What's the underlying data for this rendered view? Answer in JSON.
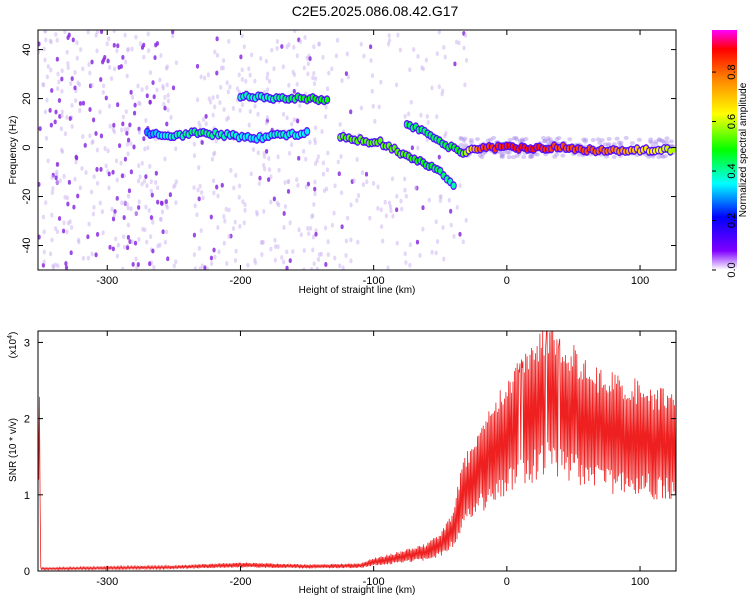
{
  "title": "C2E5.2025.086.08.42.G17",
  "chart_data": [
    {
      "type": "heatmap",
      "xlabel": "Height of straight line (km)",
      "ylabel": "Frequency (Hz)",
      "xlim": [
        -352,
        127
      ],
      "ylim": [
        -50,
        48
      ],
      "xticks": [
        "-300",
        "-200",
        "-100",
        "0",
        "100"
      ],
      "yticks": [
        "40",
        "20",
        "0",
        "-20",
        "-40"
      ],
      "colorbar": {
        "label": "Normalized spectral amplitude",
        "range": [
          0.0,
          0.97
        ],
        "ticks": [
          "0.0",
          "0.2",
          "0.4",
          "0.6",
          "0.8"
        ],
        "colormap": [
          "#ffffff",
          "#7f00ff",
          "#0000ff",
          "#00ffff",
          "#00ff00",
          "#ffff00",
          "#ff8000",
          "#ff0000",
          "#ff00ff"
        ]
      },
      "ridge": [
        {
          "x": -270,
          "y": 6,
          "v": 0.3
        },
        {
          "x": -250,
          "y": 5,
          "v": 0.4
        },
        {
          "x": -230,
          "y": 6,
          "v": 0.45
        },
        {
          "x": -210,
          "y": 5,
          "v": 0.4
        },
        {
          "x": -190,
          "y": 4,
          "v": 0.35
        },
        {
          "x": -170,
          "y": 5,
          "v": 0.4
        },
        {
          "x": -150,
          "y": 6,
          "v": 0.35
        },
        {
          "x": -200,
          "y": 21,
          "v": 0.4
        },
        {
          "x": -180,
          "y": 20,
          "v": 0.4
        },
        {
          "x": -150,
          "y": 20,
          "v": 0.5
        },
        {
          "x": -135,
          "y": 19,
          "v": 0.5
        },
        {
          "x": -125,
          "y": 4,
          "v": 0.55
        },
        {
          "x": -110,
          "y": 3,
          "v": 0.55
        },
        {
          "x": -95,
          "y": 2,
          "v": 0.55
        },
        {
          "x": -80,
          "y": -2,
          "v": 0.55
        },
        {
          "x": -65,
          "y": -6,
          "v": 0.5
        },
        {
          "x": -50,
          "y": -9,
          "v": 0.45
        },
        {
          "x": -40,
          "y": -16,
          "v": 0.4
        },
        {
          "x": -75,
          "y": 10,
          "v": 0.45
        },
        {
          "x": -55,
          "y": 4,
          "v": 0.45
        },
        {
          "x": -35,
          "y": -2,
          "v": 0.5
        },
        {
          "x": -20,
          "y": 0,
          "v": 0.85
        },
        {
          "x": 0,
          "y": 0,
          "v": 0.9
        },
        {
          "x": 20,
          "y": 0,
          "v": 0.9
        },
        {
          "x": 40,
          "y": 0,
          "v": 0.85
        },
        {
          "x": 60,
          "y": -1,
          "v": 0.85
        },
        {
          "x": 80,
          "y": -1,
          "v": 0.8
        },
        {
          "x": 100,
          "y": -1,
          "v": 0.7
        },
        {
          "x": 125,
          "y": -1,
          "v": 0.6
        }
      ]
    },
    {
      "type": "line",
      "xlabel": "Height of straight line (km)",
      "ylabel": "SNR (10 * v/v)",
      "scale_label": "(x10",
      "scale_exp": "4",
      "xlim": [
        -352,
        127
      ],
      "ylim": [
        0,
        3.15
      ],
      "xticks": [
        "-300",
        "-200",
        "-100",
        "0",
        "100"
      ],
      "yticks": [
        "0",
        "1",
        "2",
        "3"
      ],
      "color": "#ee2020",
      "series": [
        {
          "x": [
            -350,
            -300,
            -250,
            -200,
            -150,
            -110,
            -100,
            -90,
            -80,
            -70,
            -60,
            -50,
            -40,
            -35,
            -30,
            -20,
            -10,
            0,
            10,
            20,
            25,
            30,
            35,
            40,
            45,
            50,
            60,
            70,
            80,
            90,
            100,
            110,
            120,
            127
          ],
          "values": [
            0.03,
            0.04,
            0.05,
            0.08,
            0.06,
            0.07,
            0.12,
            0.15,
            0.18,
            0.22,
            0.25,
            0.35,
            0.55,
            0.9,
            1.1,
            1.35,
            1.6,
            1.75,
            1.95,
            2.1,
            2.2,
            2.3,
            2.25,
            2.2,
            2.1,
            2.05,
            1.95,
            1.85,
            1.8,
            1.78,
            1.72,
            1.68,
            1.65,
            1.6
          ]
        }
      ]
    }
  ]
}
